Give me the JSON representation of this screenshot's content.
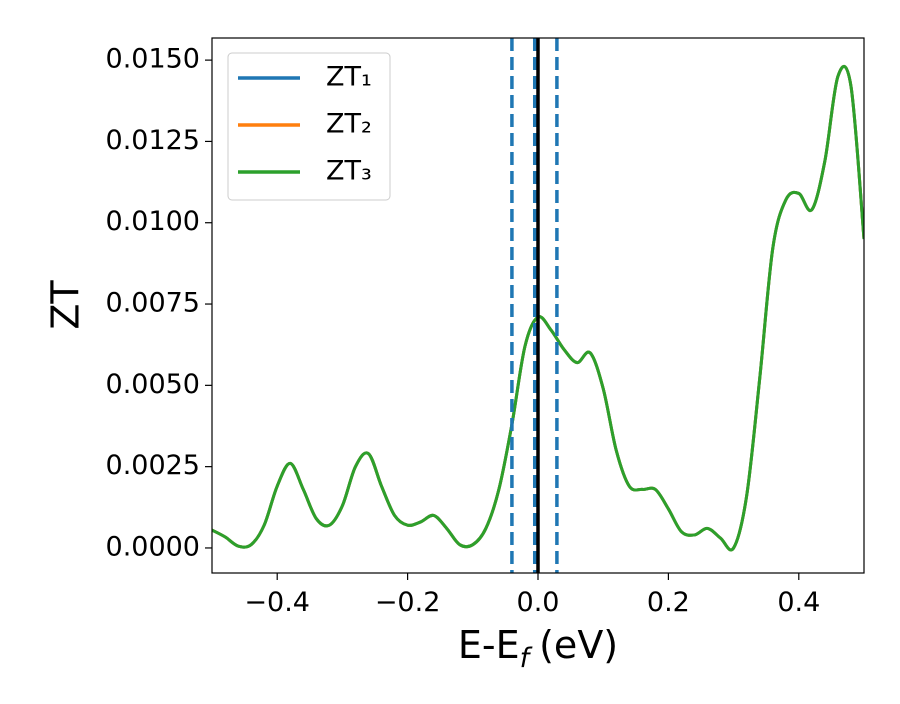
{
  "chart_data": {
    "type": "line",
    "xlabel": {
      "text": "E-E",
      "subscript": "f",
      "unit": "(eV)"
    },
    "ylabel": "ZT",
    "xlim": [
      -0.5,
      0.5
    ],
    "ylim": [
      -0.00077,
      0.01568
    ],
    "xticks": [
      {
        "value": -0.4,
        "label": "−0.4"
      },
      {
        "value": -0.2,
        "label": "−0.2"
      },
      {
        "value": 0,
        "label": "0.0"
      },
      0.2,
      0.4
    ],
    "yticks": [
      {
        "value": 0,
        "label": "0.0000"
      },
      {
        "value": 0.0025,
        "label": "0.0025"
      },
      {
        "value": 0.005,
        "label": "0.0050"
      },
      {
        "value": 0.0075,
        "label": "0.0075"
      },
      {
        "value": 0.01,
        "label": "0.0100"
      },
      {
        "value": 0.0125,
        "label": "0.0125"
      },
      {
        "value": 0.015,
        "label": "0.0150"
      }
    ],
    "grid": false,
    "legend": "upper left",
    "x": [
      -0.5,
      -0.48,
      -0.46,
      -0.44,
      -0.42,
      -0.4,
      -0.38,
      -0.36,
      -0.34,
      -0.32,
      -0.3,
      -0.28,
      -0.26,
      -0.24,
      -0.22,
      -0.2,
      -0.18,
      -0.16,
      -0.14,
      -0.12,
      -0.1,
      -0.08,
      -0.06,
      -0.04,
      -0.02,
      0,
      0.02,
      0.04,
      0.06,
      0.08,
      0.1,
      0.12,
      0.14,
      0.16,
      0.18,
      0.2,
      0.22,
      0.24,
      0.26,
      0.28,
      0.3,
      0.32,
      0.34,
      0.36,
      0.38,
      0.4,
      0.42,
      0.44,
      0.46,
      0.48,
      0.5
    ],
    "series": [
      {
        "name": "ZT₁",
        "color": "#1f77b4",
        "values": [
          0.00055,
          0.00034,
          6e-05,
          0.0001,
          0.0007,
          0.0019,
          0.0026,
          0.0018,
          0.0009,
          0.0007,
          0.0013,
          0.0025,
          0.0029,
          0.0019,
          0.001,
          0.0007,
          0.0008,
          0.001,
          0.0006,
          0.0001,
          0.0001,
          0.0006,
          0.0018,
          0.0038,
          0.0062,
          0.0071,
          0.0067,
          0.0061,
          0.0057,
          0.006,
          0.0049,
          0.003,
          0.0019,
          0.0018,
          0.0018,
          0.0012,
          0.0005,
          0.0004,
          0.0006,
          0.0003,
          0,
          0.0016,
          0.0052,
          0.0092,
          0.0107,
          0.0109,
          0.0104,
          0.0119,
          0.0145,
          0.0142,
          0.0095
        ]
      },
      {
        "name": "ZT₂",
        "color": "#ff7f0e",
        "values": [
          0.00055,
          0.00034,
          6e-05,
          0.0001,
          0.0007,
          0.0019,
          0.0026,
          0.0018,
          0.0009,
          0.0007,
          0.0013,
          0.0025,
          0.0029,
          0.0019,
          0.001,
          0.0007,
          0.0008,
          0.001,
          0.0006,
          0.0001,
          0.0001,
          0.0006,
          0.0018,
          0.0038,
          0.0062,
          0.0071,
          0.0067,
          0.0061,
          0.0057,
          0.006,
          0.0049,
          0.003,
          0.0019,
          0.0018,
          0.0018,
          0.0012,
          0.0005,
          0.0004,
          0.0006,
          0.0003,
          0,
          0.0016,
          0.0052,
          0.0092,
          0.0107,
          0.0109,
          0.0104,
          0.0119,
          0.0145,
          0.0142,
          0.0095
        ]
      },
      {
        "name": "ZT₃",
        "color": "#2ca02c",
        "values": [
          0.00055,
          0.00034,
          6e-05,
          0.0001,
          0.0007,
          0.0019,
          0.0026,
          0.0018,
          0.0009,
          0.0007,
          0.0013,
          0.0025,
          0.0029,
          0.0019,
          0.001,
          0.0007,
          0.0008,
          0.001,
          0.0006,
          0.0001,
          0.0001,
          0.0006,
          0.0018,
          0.0038,
          0.0062,
          0.0071,
          0.0067,
          0.0061,
          0.0057,
          0.006,
          0.0049,
          0.003,
          0.0019,
          0.0018,
          0.0018,
          0.0012,
          0.0005,
          0.0004,
          0.0006,
          0.0003,
          0,
          0.0016,
          0.0052,
          0.0092,
          0.0107,
          0.0109,
          0.0104,
          0.0119,
          0.0145,
          0.0142,
          0.0095
        ]
      }
    ],
    "vlines": [
      {
        "x": -0.04,
        "color": "#1f77b4",
        "style": "dashed"
      },
      {
        "x": -0.005,
        "color": "#1f77b4",
        "style": "dashed"
      },
      {
        "x": 0.029,
        "color": "#1f77b4",
        "style": "dashed"
      },
      {
        "x": 0,
        "color": "#000000",
        "style": "solid"
      }
    ]
  }
}
